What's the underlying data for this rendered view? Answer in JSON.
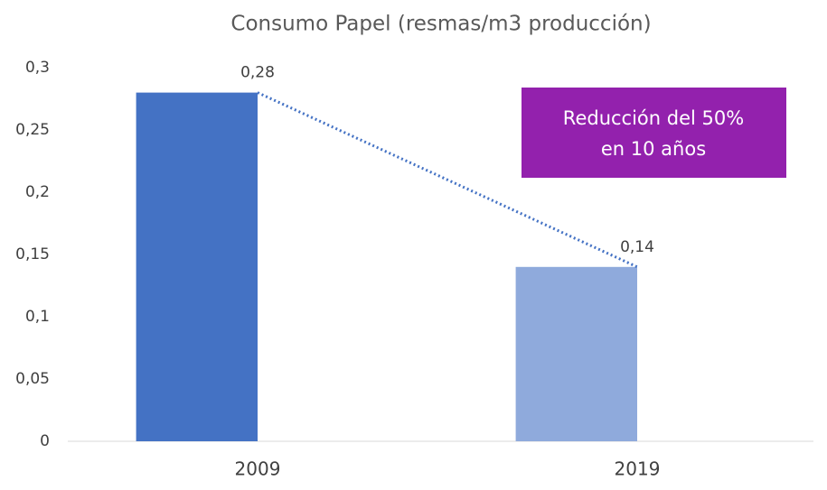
{
  "chart_data": {
    "type": "bar",
    "title": "Consumo Papel (resmas/m3 producción)",
    "categories": [
      "2009",
      "2019"
    ],
    "values": [
      0.28,
      0.14
    ],
    "value_labels": [
      "0,28",
      "0,14"
    ],
    "colors": [
      "#4472c4",
      "#8faadc"
    ],
    "ylim": [
      0,
      0.3
    ],
    "yticks": [
      0,
      {
        "value": 0.05,
        "label": "0,05"
      },
      {
        "value": 0.1,
        "label": "0,1"
      },
      {
        "value": 0.15,
        "label": "0,15"
      },
      {
        "value": 0.2,
        "label": "0,2"
      },
      {
        "value": 0.25,
        "label": "0,25"
      },
      {
        "value": 0.3,
        "label": "0,3"
      }
    ],
    "grid": false,
    "trendline": {
      "color": "#4472c4",
      "style": "dotted"
    },
    "annotation": {
      "lines": [
        "Reducción del 50%",
        "en 10 años"
      ],
      "color": "#9321ad"
    }
  }
}
